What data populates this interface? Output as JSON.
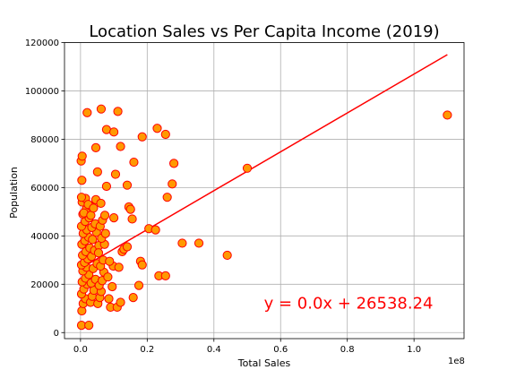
{
  "chart_data": {
    "type": "scatter",
    "title": "Location Sales vs Per Capita Income (2019)",
    "xlabel": "Total Sales",
    "ylabel": "Population",
    "x_scale_label": "1e8",
    "xlim": [
      -4800000,
      115000000
    ],
    "ylim": [
      -2500,
      120000
    ],
    "x_unit_divisor": 100000000,
    "x_ticks": [
      0,
      20000000,
      40000000,
      60000000,
      80000000,
      100000000
    ],
    "x_tick_labels": [
      "0.0",
      "0.2",
      "0.4",
      "0.6",
      "0.8",
      "1.0"
    ],
    "y_ticks": [
      0,
      20000,
      40000,
      60000,
      80000,
      100000,
      120000
    ],
    "y_tick_labels": [
      "0",
      "20000",
      "40000",
      "60000",
      "80000",
      "100000",
      "120000"
    ],
    "grid": true,
    "marker_fill": "#ff9900",
    "marker_edge": "#ff0000",
    "line_color": "#ff0000",
    "annotation": {
      "text": "y = 0.0x + 26538.24",
      "x": 55000000,
      "y": 10000,
      "color": "#ff0000"
    },
    "regression": {
      "x": [
        0,
        110000000
      ],
      "y": [
        26538.24,
        115000
      ]
    },
    "points": [
      [
        300000,
        3000
      ],
      [
        2500000,
        3000
      ],
      [
        400000,
        9000
      ],
      [
        800000,
        12000
      ],
      [
        1500000,
        14000
      ],
      [
        300000,
        16000
      ],
      [
        1000000,
        18000
      ],
      [
        2000000,
        20000
      ],
      [
        500000,
        21000
      ],
      [
        1500000,
        22500
      ],
      [
        2500000,
        24000
      ],
      [
        700000,
        25500
      ],
      [
        1800000,
        27000
      ],
      [
        300000,
        28000
      ],
      [
        1200000,
        29000
      ],
      [
        2200000,
        30500
      ],
      [
        600000,
        32000
      ],
      [
        1600000,
        33500
      ],
      [
        2800000,
        35000
      ],
      [
        400000,
        36500
      ],
      [
        1300000,
        38000
      ],
      [
        2400000,
        39500
      ],
      [
        800000,
        41000
      ],
      [
        1900000,
        42500
      ],
      [
        300000,
        44000
      ],
      [
        1400000,
        46000
      ],
      [
        2600000,
        47500
      ],
      [
        700000,
        49000
      ],
      [
        1700000,
        51000
      ],
      [
        2900000,
        52500
      ],
      [
        500000,
        54000
      ],
      [
        1500000,
        55500
      ],
      [
        2300000,
        53000
      ],
      [
        300000,
        56000
      ],
      [
        1000000,
        49500
      ],
      [
        400000,
        63000
      ],
      [
        200000,
        71000
      ],
      [
        500000,
        73000
      ],
      [
        2000000,
        91000
      ],
      [
        3000000,
        12500
      ],
      [
        3500000,
        15000
      ],
      [
        4000000,
        17500
      ],
      [
        3200000,
        20500
      ],
      [
        4500000,
        22000
      ],
      [
        3800000,
        26500
      ],
      [
        5000000,
        28500
      ],
      [
        3300000,
        31500
      ],
      [
        4200000,
        34000
      ],
      [
        5500000,
        36000
      ],
      [
        3600000,
        38500
      ],
      [
        4800000,
        41500
      ],
      [
        3400000,
        43500
      ],
      [
        4400000,
        45000
      ],
      [
        3100000,
        48500
      ],
      [
        3900000,
        51500
      ],
      [
        4600000,
        55000
      ],
      [
        5200000,
        12000
      ],
      [
        5800000,
        14500
      ],
      [
        6200000,
        17000
      ],
      [
        5600000,
        19500
      ],
      [
        6500000,
        21500
      ],
      [
        7000000,
        25000
      ],
      [
        6000000,
        27500
      ],
      [
        6800000,
        30000
      ],
      [
        5400000,
        33000
      ],
      [
        7200000,
        36500
      ],
      [
        6300000,
        39000
      ],
      [
        7500000,
        41000
      ],
      [
        5900000,
        44000
      ],
      [
        6600000,
        46500
      ],
      [
        7300000,
        48500
      ],
      [
        6100000,
        53500
      ],
      [
        7800000,
        60500
      ],
      [
        5100000,
        66500
      ],
      [
        4600000,
        76500
      ],
      [
        6200000,
        92500
      ],
      [
        7800000,
        84000
      ],
      [
        9000000,
        10500
      ],
      [
        8500000,
        14000
      ],
      [
        9500000,
        19000
      ],
      [
        8200000,
        23000
      ],
      [
        9800000,
        27500
      ],
      [
        8700000,
        29500
      ],
      [
        10000000,
        47500
      ],
      [
        10500000,
        65500
      ],
      [
        10000000,
        83000
      ],
      [
        11200000,
        91500
      ],
      [
        11000000,
        10500
      ],
      [
        12000000,
        12500
      ],
      [
        11500000,
        27000
      ],
      [
        12500000,
        33500
      ],
      [
        13000000,
        34500
      ],
      [
        12000000,
        77000
      ],
      [
        14000000,
        35500
      ],
      [
        14500000,
        52000
      ],
      [
        14000000,
        61000
      ],
      [
        15000000,
        51000
      ],
      [
        15500000,
        47000
      ],
      [
        15800000,
        14500
      ],
      [
        16000000,
        70500
      ],
      [
        17500000,
        19500
      ],
      [
        18000000,
        29500
      ],
      [
        18500000,
        28000
      ],
      [
        18500000,
        81000
      ],
      [
        20500000,
        43000
      ],
      [
        22500000,
        42500
      ],
      [
        23500000,
        23500
      ],
      [
        23000000,
        84500
      ],
      [
        25500000,
        23500
      ],
      [
        26000000,
        56000
      ],
      [
        25500000,
        82000
      ],
      [
        27500000,
        61500
      ],
      [
        28000000,
        70000
      ],
      [
        30500000,
        37000
      ],
      [
        35500000,
        37000
      ],
      [
        44000000,
        32000
      ],
      [
        50000000,
        68000
      ],
      [
        110000000,
        90000
      ]
    ]
  }
}
